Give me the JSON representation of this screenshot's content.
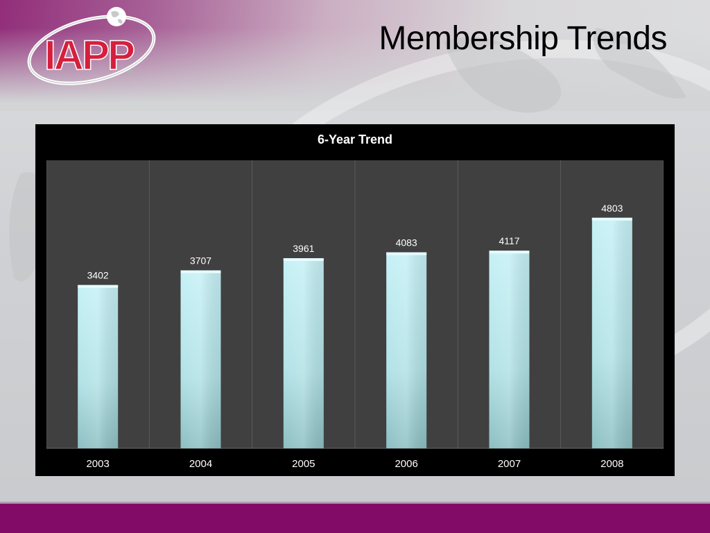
{
  "slide": {
    "title": "Membership Trends",
    "logo_text": "IAPP",
    "colors": {
      "brand_purple": "#830b68",
      "logo_red": "#d51f3c",
      "bar_fill_top": "#bdeef3",
      "bar_fill_bottom": "#8fc3c6",
      "plot_bg": "#404040"
    }
  },
  "chart_data": {
    "type": "bar",
    "title": "6-Year Trend",
    "categories": [
      "2003",
      "2004",
      "2005",
      "2006",
      "2007",
      "2008"
    ],
    "values": [
      3402,
      3707,
      3961,
      4083,
      4117,
      4803
    ],
    "xlabel": "",
    "ylabel": "",
    "ylim": [
      0,
      6000
    ],
    "grid": "vertical",
    "legend": "none",
    "data_labels": true
  }
}
